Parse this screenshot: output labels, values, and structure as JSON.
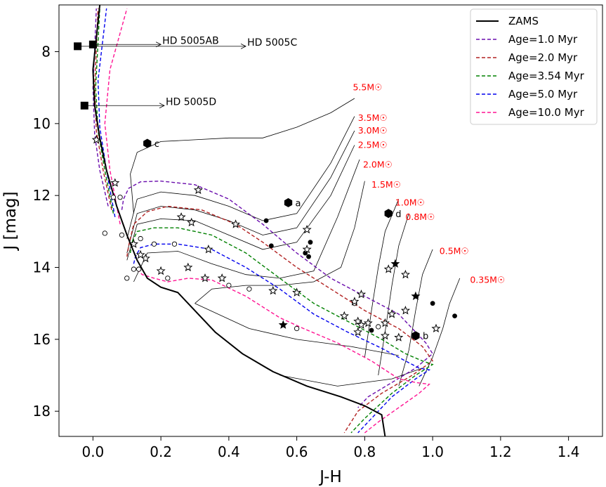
{
  "chart_data": {
    "type": "scatter",
    "xlabel": "J-H",
    "ylabel": "J [mag]",
    "xlim": [
      -0.1,
      1.5
    ],
    "ylim": [
      18.7,
      6.7
    ],
    "y_inverted": true,
    "x_ticks": [
      0.0,
      0.2,
      0.4,
      0.6,
      0.8,
      1.0,
      1.2,
      1.4
    ],
    "x_tick_labels": [
      "0.0",
      "0.2",
      "0.4",
      "0.6",
      "0.8",
      "1.0",
      "1.2",
      "1.4"
    ],
    "y_ticks": [
      8,
      10,
      12,
      14,
      16,
      18
    ],
    "y_tick_labels": [
      "8",
      "10",
      "12",
      "14",
      "16",
      "18"
    ],
    "legend_position": "top-right",
    "colors": {
      "zams": "#000000",
      "iso_1": "#6a0dad",
      "iso_2": "#b22222",
      "iso_3": "#008000",
      "iso_5": "#0000ee",
      "iso_10": "#ff1493",
      "mass_label": "#ff0000",
      "track": "#000000"
    },
    "legend": [
      {
        "label": "ZAMS",
        "color": "#000000",
        "dash": "solid"
      },
      {
        "label": "Age=1.0 Myr",
        "color": "#6a0dad",
        "dash": "dashed"
      },
      {
        "label": "Age=2.0 Myr",
        "color": "#b22222",
        "dash": "dashed"
      },
      {
        "label": "Age=3.54 Myr",
        "color": "#008000",
        "dash": "dashed"
      },
      {
        "label": "Age=5.0 Myr",
        "color": "#0000ee",
        "dash": "dashed"
      },
      {
        "label": "Age=10.0 Myr",
        "color": "#ff1493",
        "dash": "dashed"
      }
    ],
    "zams": {
      "x": [
        0.02,
        0.0,
        0.005,
        0.02,
        0.04,
        0.07,
        0.1,
        0.13,
        0.16,
        0.2,
        0.25,
        0.3,
        0.36,
        0.44,
        0.53,
        0.63,
        0.73,
        0.8,
        0.85,
        0.86
      ],
      "y": [
        6.7,
        8.5,
        9.5,
        10.4,
        11.3,
        12.3,
        13.1,
        13.8,
        14.3,
        14.55,
        14.7,
        15.2,
        15.8,
        16.4,
        16.9,
        17.3,
        17.6,
        17.85,
        18.1,
        18.7
      ]
    },
    "isochrones": [
      {
        "name": "Age=1.0 Myr",
        "x": [
          0.085,
          0.09,
          0.105,
          0.14,
          0.2,
          0.3,
          0.4,
          0.5,
          0.6,
          0.7,
          0.8,
          0.9,
          0.98,
          1.0,
          0.95,
          0.88,
          0.81,
          0.78
        ],
        "y": [
          12.4,
          12.1,
          11.8,
          11.62,
          11.6,
          11.7,
          12.1,
          12.8,
          13.6,
          14.3,
          14.8,
          15.3,
          16.1,
          16.4,
          16.8,
          17.2,
          17.6,
          17.9
        ]
      },
      {
        "name": "Age=2.0 Myr",
        "x": [
          0.1,
          0.105,
          0.12,
          0.16,
          0.22,
          0.32,
          0.42,
          0.5,
          0.6,
          0.7,
          0.8,
          0.9,
          0.97,
          1.0,
          0.94,
          0.85,
          0.78,
          0.74
        ],
        "y": [
          13.7,
          13.4,
          12.8,
          12.45,
          12.3,
          12.4,
          12.8,
          13.3,
          14.0,
          14.6,
          15.2,
          15.7,
          16.2,
          16.6,
          17.0,
          17.5,
          18.0,
          18.6
        ]
      },
      {
        "name": "Age=3.54 Myr",
        "x": [
          0.11,
          0.115,
          0.13,
          0.18,
          0.25,
          0.35,
          0.45,
          0.55,
          0.65,
          0.75,
          0.85,
          0.92,
          0.97,
          1.0,
          0.95,
          0.88,
          0.8,
          0.76
        ],
        "y": [
          13.6,
          13.3,
          13.0,
          12.9,
          12.9,
          13.1,
          13.6,
          14.3,
          15.0,
          15.5,
          16.0,
          16.4,
          16.6,
          16.7,
          17.0,
          17.5,
          18.2,
          18.6
        ]
      },
      {
        "name": "Age=5.0 Myr",
        "x": [
          0.12,
          0.125,
          0.14,
          0.18,
          0.25,
          0.35,
          0.45,
          0.55,
          0.65,
          0.75,
          0.85,
          0.92,
          0.96,
          0.99,
          0.95,
          0.88,
          0.82,
          0.78
        ],
        "y": [
          13.9,
          13.7,
          13.45,
          13.35,
          13.35,
          13.5,
          14.0,
          14.6,
          15.3,
          15.8,
          16.25,
          16.6,
          16.8,
          16.85,
          17.1,
          17.6,
          18.2,
          18.6
        ]
      },
      {
        "name": "Age=10.0 Myr",
        "x": [
          0.13,
          0.145,
          0.18,
          0.22,
          0.28,
          0.35,
          0.45,
          0.55,
          0.62,
          0.72,
          0.82,
          0.9,
          0.95,
          0.99,
          0.96,
          0.9,
          0.84,
          0.8
        ],
        "y": [
          14.05,
          14.2,
          14.3,
          14.4,
          14.3,
          14.35,
          14.8,
          15.4,
          15.7,
          16.1,
          16.6,
          17.1,
          17.2,
          17.25,
          17.5,
          17.9,
          18.3,
          18.6
        ]
      }
    ],
    "upper_isochrone_branches": [
      {
        "name": "Age=1.0 Myr",
        "x": [
          0.045,
          0.02,
          0.005,
          0.0,
          0.01
        ],
        "y": [
          12.3,
          11.3,
          10.3,
          9.0,
          6.8
        ]
      },
      {
        "name": "Age=2.0 Myr",
        "x": [
          0.055,
          0.03,
          0.01,
          0.005,
          0.015
        ],
        "y": [
          12.4,
          11.3,
          10.2,
          9.0,
          6.8
        ]
      },
      {
        "name": "Age=3.54 Myr",
        "x": [
          0.06,
          0.035,
          0.015,
          0.008,
          0.02
        ],
        "y": [
          12.5,
          11.3,
          10.2,
          9.0,
          6.8
        ]
      },
      {
        "name": "Age=5.0 Myr",
        "x": [
          0.065,
          0.04,
          0.02,
          0.015,
          0.04
        ],
        "y": [
          12.6,
          11.3,
          10.1,
          8.8,
          6.8
        ]
      },
      {
        "name": "Age=10.0 Myr",
        "x": [
          0.08,
          0.05,
          0.035,
          0.05,
          0.1
        ],
        "y": [
          12.8,
          11.3,
          10.0,
          8.5,
          6.8
        ]
      }
    ],
    "tracks": [
      {
        "mass": "5.5M☉",
        "x": [
          0.12,
          0.11,
          0.13,
          0.2,
          0.3,
          0.4,
          0.5,
          0.6,
          0.7,
          0.77
        ],
        "y": [
          12.5,
          11.4,
          10.8,
          10.5,
          10.45,
          10.4,
          10.4,
          10.1,
          9.7,
          9.3
        ]
      },
      {
        "mass": "3.5M☉",
        "x": [
          0.1,
          0.13,
          0.2,
          0.3,
          0.4,
          0.5,
          0.6,
          0.7,
          0.77
        ],
        "y": [
          13.2,
          12.1,
          11.9,
          12.0,
          12.3,
          12.7,
          12.5,
          11.1,
          9.8
        ]
      },
      {
        "mass": "3.0M☉",
        "x": [
          0.1,
          0.13,
          0.2,
          0.3,
          0.4,
          0.5,
          0.6,
          0.7,
          0.77
        ],
        "y": [
          13.6,
          12.5,
          12.3,
          12.4,
          12.7,
          13.1,
          12.9,
          11.5,
          10.2
        ]
      },
      {
        "mass": "2.5M☉",
        "x": [
          0.1,
          0.13,
          0.2,
          0.3,
          0.4,
          0.5,
          0.6,
          0.7,
          0.77
        ],
        "y": [
          13.8,
          12.8,
          12.65,
          12.7,
          13.1,
          13.5,
          13.3,
          12.0,
          10.6
        ]
      },
      {
        "mass": "2.0M☉",
        "x": [
          0.12,
          0.16,
          0.25,
          0.35,
          0.45,
          0.55,
          0.65,
          0.72,
          0.785
        ],
        "y": [
          14.4,
          13.6,
          13.55,
          13.9,
          14.2,
          14.3,
          14.1,
          12.6,
          11.0
        ]
      },
      {
        "mass": "1.5M☉",
        "x": [
          0.3,
          0.35,
          0.45,
          0.55,
          0.65,
          0.73,
          0.77,
          0.8
        ],
        "y": [
          15.0,
          14.6,
          14.5,
          14.5,
          14.4,
          14.0,
          12.9,
          11.6
        ]
      },
      {
        "mass": "1.0M☉",
        "x": [
          0.8,
          0.82,
          0.84,
          0.86,
          0.9
        ],
        "y": [
          16.5,
          15.2,
          14.0,
          13.0,
          12.1
        ]
      },
      {
        "mass": "0.8M☉",
        "x": [
          0.84,
          0.86,
          0.88,
          0.9,
          0.93
        ],
        "y": [
          17.0,
          15.8,
          14.5,
          13.4,
          12.5
        ]
      },
      {
        "mass": "0.5M☉",
        "x": [
          0.9,
          0.93,
          0.95,
          0.97,
          1.0
        ],
        "y": [
          17.3,
          16.3,
          15.2,
          14.2,
          13.5
        ]
      },
      {
        "mass": "0.35M☉",
        "x": [
          0.96,
          1.0,
          1.03,
          1.05,
          1.08
        ],
        "y": [
          17.3,
          16.5,
          15.7,
          15.0,
          14.3
        ]
      }
    ],
    "low_mass_tails": [
      {
        "x": [
          0.3,
          0.46,
          0.6,
          0.76,
          0.9
        ],
        "y": [
          15.0,
          15.7,
          16.0,
          16.2,
          16.45
        ]
      },
      {
        "x": [
          0.55,
          0.72,
          0.88,
          0.97
        ],
        "y": [
          17.0,
          17.3,
          17.1,
          16.8
        ]
      }
    ],
    "mass_labels": [
      {
        "text": "5.5M☉",
        "x": 0.765,
        "y": 9.0
      },
      {
        "text": "3.5M☉",
        "x": 0.78,
        "y": 9.85
      },
      {
        "text": "3.0M☉",
        "x": 0.78,
        "y": 10.2
      },
      {
        "text": "2.5M☉",
        "x": 0.78,
        "y": 10.6
      },
      {
        "text": "2.0M☉",
        "x": 0.795,
        "y": 11.15
      },
      {
        "text": "1.5M☉",
        "x": 0.82,
        "y": 11.7
      },
      {
        "text": "1.0M☉",
        "x": 0.89,
        "y": 12.2
      },
      {
        "text": "0.8M☉",
        "x": 0.92,
        "y": 12.6
      },
      {
        "text": "0.5M☉",
        "x": 1.02,
        "y": 13.55
      },
      {
        "text": "0.35M☉",
        "x": 1.11,
        "y": 14.35
      }
    ],
    "hd_points": [
      {
        "label": "HD 5005AB",
        "x": 0.0,
        "y": 7.8,
        "arrow_to_x": 0.2,
        "text_x": 0.2
      },
      {
        "label": "HD 5005C",
        "x": -0.045,
        "y": 7.85,
        "arrow_to_x": 0.45,
        "text_x": 0.45
      },
      {
        "label": "HD 5005D",
        "x": -0.025,
        "y": 9.5,
        "arrow_to_x": 0.21,
        "text_x": 0.21
      }
    ],
    "big_labeled_points": [
      {
        "label": "a",
        "x": 0.575,
        "y": 12.2
      },
      {
        "label": "b",
        "x": 0.95,
        "y": 15.9
      },
      {
        "label": "c",
        "x": 0.16,
        "y": 10.55
      },
      {
        "label": "d",
        "x": 0.87,
        "y": 12.5
      }
    ],
    "open_stars": [
      [
        0.01,
        10.45
      ],
      [
        0.065,
        11.65
      ],
      [
        0.31,
        11.85
      ],
      [
        0.26,
        12.6
      ],
      [
        0.42,
        12.8
      ],
      [
        0.12,
        13.35
      ],
      [
        0.155,
        13.75
      ],
      [
        0.14,
        13.65
      ],
      [
        0.34,
        13.5
      ],
      [
        0.28,
        14.0
      ],
      [
        0.2,
        14.1
      ],
      [
        0.33,
        14.3
      ],
      [
        0.38,
        14.3
      ],
      [
        0.53,
        14.65
      ],
      [
        0.6,
        14.7
      ],
      [
        0.63,
        13.5
      ],
      [
        0.63,
        12.95
      ],
      [
        0.79,
        14.75
      ],
      [
        0.77,
        14.95
      ],
      [
        0.74,
        15.35
      ],
      [
        0.78,
        15.5
      ],
      [
        0.81,
        15.55
      ],
      [
        0.86,
        15.55
      ],
      [
        0.88,
        15.3
      ],
      [
        0.92,
        15.2
      ],
      [
        0.87,
        14.05
      ],
      [
        0.92,
        14.2
      ],
      [
        0.86,
        15.9
      ],
      [
        0.9,
        15.95
      ],
      [
        1.01,
        15.7
      ],
      [
        0.79,
        15.6
      ],
      [
        0.78,
        15.8
      ],
      [
        0.29,
        12.75
      ]
    ],
    "filled_stars": [
      [
        0.56,
        15.6
      ],
      [
        0.89,
        13.9
      ],
      [
        0.95,
        14.8
      ]
    ],
    "open_circles": [
      [
        0.035,
        13.05
      ],
      [
        0.06,
        12.05
      ],
      [
        0.08,
        12.05
      ],
      [
        0.085,
        13.1
      ],
      [
        0.1,
        14.3
      ],
      [
        0.12,
        14.05
      ],
      [
        0.14,
        13.2
      ],
      [
        0.135,
        14.05
      ],
      [
        0.18,
        13.35
      ],
      [
        0.22,
        14.3
      ],
      [
        0.24,
        13.35
      ],
      [
        0.4,
        14.5
      ],
      [
        0.46,
        14.6
      ],
      [
        0.6,
        15.7
      ],
      [
        0.84,
        15.65
      ],
      [
        0.77,
        15.0
      ]
    ],
    "filled_circles": [
      [
        0.51,
        12.7
      ],
      [
        0.525,
        13.4
      ],
      [
        0.64,
        13.3
      ],
      [
        0.635,
        13.7
      ],
      [
        0.82,
        15.75
      ],
      [
        1.0,
        15.0
      ],
      [
        1.065,
        15.35
      ],
      [
        0.625,
        13.6
      ]
    ]
  }
}
